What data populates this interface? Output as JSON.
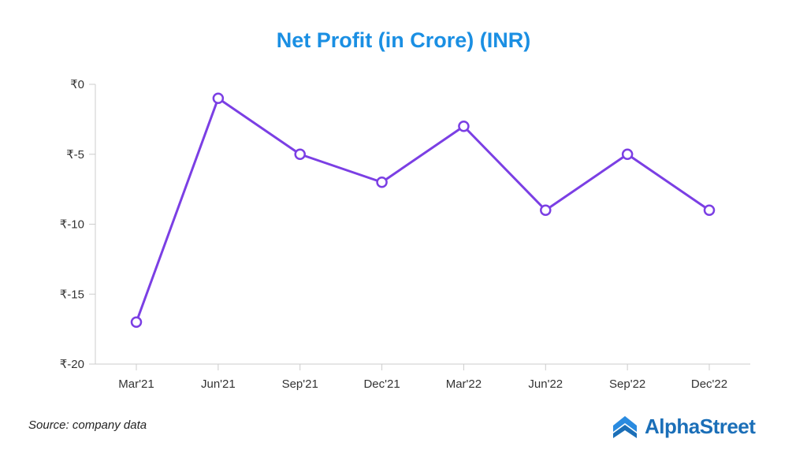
{
  "chart_data": {
    "type": "line",
    "title": "Net Profit (in Crore) (INR)",
    "categories": [
      "Mar'21",
      "Jun'21",
      "Sep'21",
      "Dec'21",
      "Mar'22",
      "Jun'22",
      "Sep'22",
      "Dec'22"
    ],
    "series": [
      {
        "values": [
          -17,
          -1,
          -5,
          -7,
          -3,
          -9,
          -5,
          -9
        ],
        "color": "#7b3fe4"
      }
    ],
    "ylim": [
      -20,
      0
    ],
    "yticks": [
      0,
      -5,
      -10,
      -15,
      -20
    ],
    "ytick_labels": [
      "₹0",
      "₹-5",
      "₹-10",
      "₹-15",
      "₹-20"
    ],
    "xlabel": "",
    "ylabel": "",
    "grid": false,
    "legend": "none"
  },
  "footer": {
    "source": "Source: company data",
    "brand": "AlphaStreet"
  },
  "colors": {
    "title": "#1a8fe3",
    "line": "#7b3fe4",
    "axis": "#cccccc",
    "brand": "#1b6fb8"
  },
  "icons": {
    "brand_logo": "alphastreet-chevron-logo"
  }
}
